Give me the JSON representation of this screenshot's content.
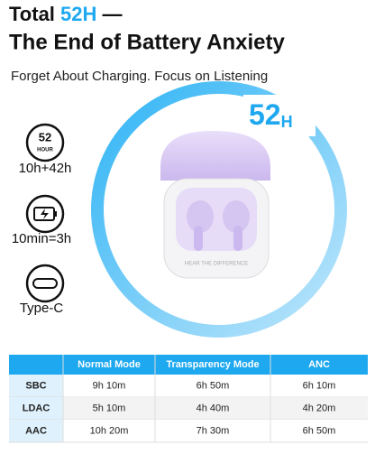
{
  "header": {
    "title_prefix": "Total",
    "title_highlight": "52H",
    "title_suffix": "—",
    "title_line2": "The End of Battery Anxiety",
    "subtitle": "Forget About Charging. Focus on Listening"
  },
  "ring": {
    "number": "52",
    "unit": "H"
  },
  "case_text": "HEAR THE DIFFERENCE",
  "features": [
    {
      "icon_number": "52",
      "icon_unit": "HOUR",
      "label": "10h+42h"
    },
    {
      "label": "10min=3h"
    },
    {
      "label": "Type-C"
    }
  ],
  "table": {
    "columns": [
      "Normal Mode",
      "Transparency Mode",
      "ANC"
    ],
    "rows": [
      [
        "SBC",
        "9h 10m",
        "6h 50m",
        "6h 10m"
      ],
      [
        "LDAC",
        "5h 10m",
        "4h 40m",
        "4h 20m"
      ],
      [
        "AAC",
        "10h 20m",
        "7h 30m",
        "6h 50m"
      ]
    ]
  }
}
